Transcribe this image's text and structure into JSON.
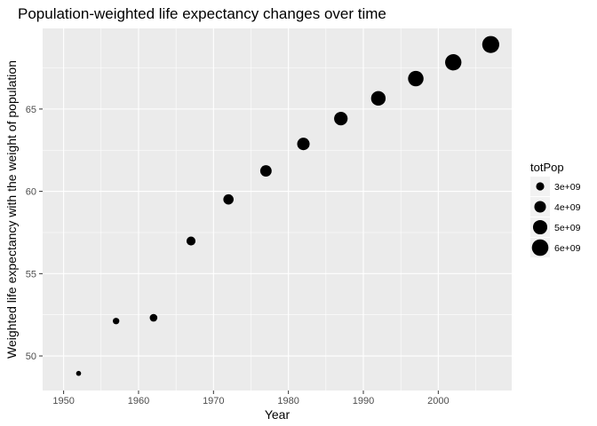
{
  "chart_data": {
    "type": "scatter",
    "title": "Population-weighted life expectancy changes over time",
    "xlabel": "Year",
    "ylabel": "Weighted life expectancy with the weight of population",
    "xlim": [
      1947.2,
      2009.8
    ],
    "ylim": [
      47.9,
      69.9
    ],
    "x_ticks": [
      1950,
      1960,
      1970,
      1980,
      1990,
      2000
    ],
    "y_ticks": [
      50,
      55,
      60,
      65
    ],
    "grid": true,
    "legend_position": "right",
    "point_color": "#000000",
    "panel_background": "#ebebeb",
    "grid_color": "#ffffff",
    "size_legend": {
      "title": "totPop",
      "entries": [
        {
          "label": "3e+09",
          "value": 3000000000
        },
        {
          "label": "4e+09",
          "value": 4000000000
        },
        {
          "label": "5e+09",
          "value": 5000000000
        },
        {
          "label": "6e+09",
          "value": 6000000000
        }
      ]
    },
    "series": [
      {
        "x": [
          1952,
          1957,
          1962,
          1967,
          1972,
          1977,
          1982,
          1987,
          1992,
          1997,
          2002,
          2007
        ],
        "y": [
          48.94,
          52.12,
          52.32,
          56.98,
          59.51,
          61.24,
          62.88,
          64.42,
          65.65,
          66.85,
          67.84,
          68.92
        ],
        "totPop": [
          2406957150,
          2664404580,
          2899782974,
          3217478384,
          3576977158,
          3930045807,
          4289436840,
          4691477418,
          5110710260,
          5515204472,
          5886977579,
          6251013179
        ]
      }
    ]
  }
}
